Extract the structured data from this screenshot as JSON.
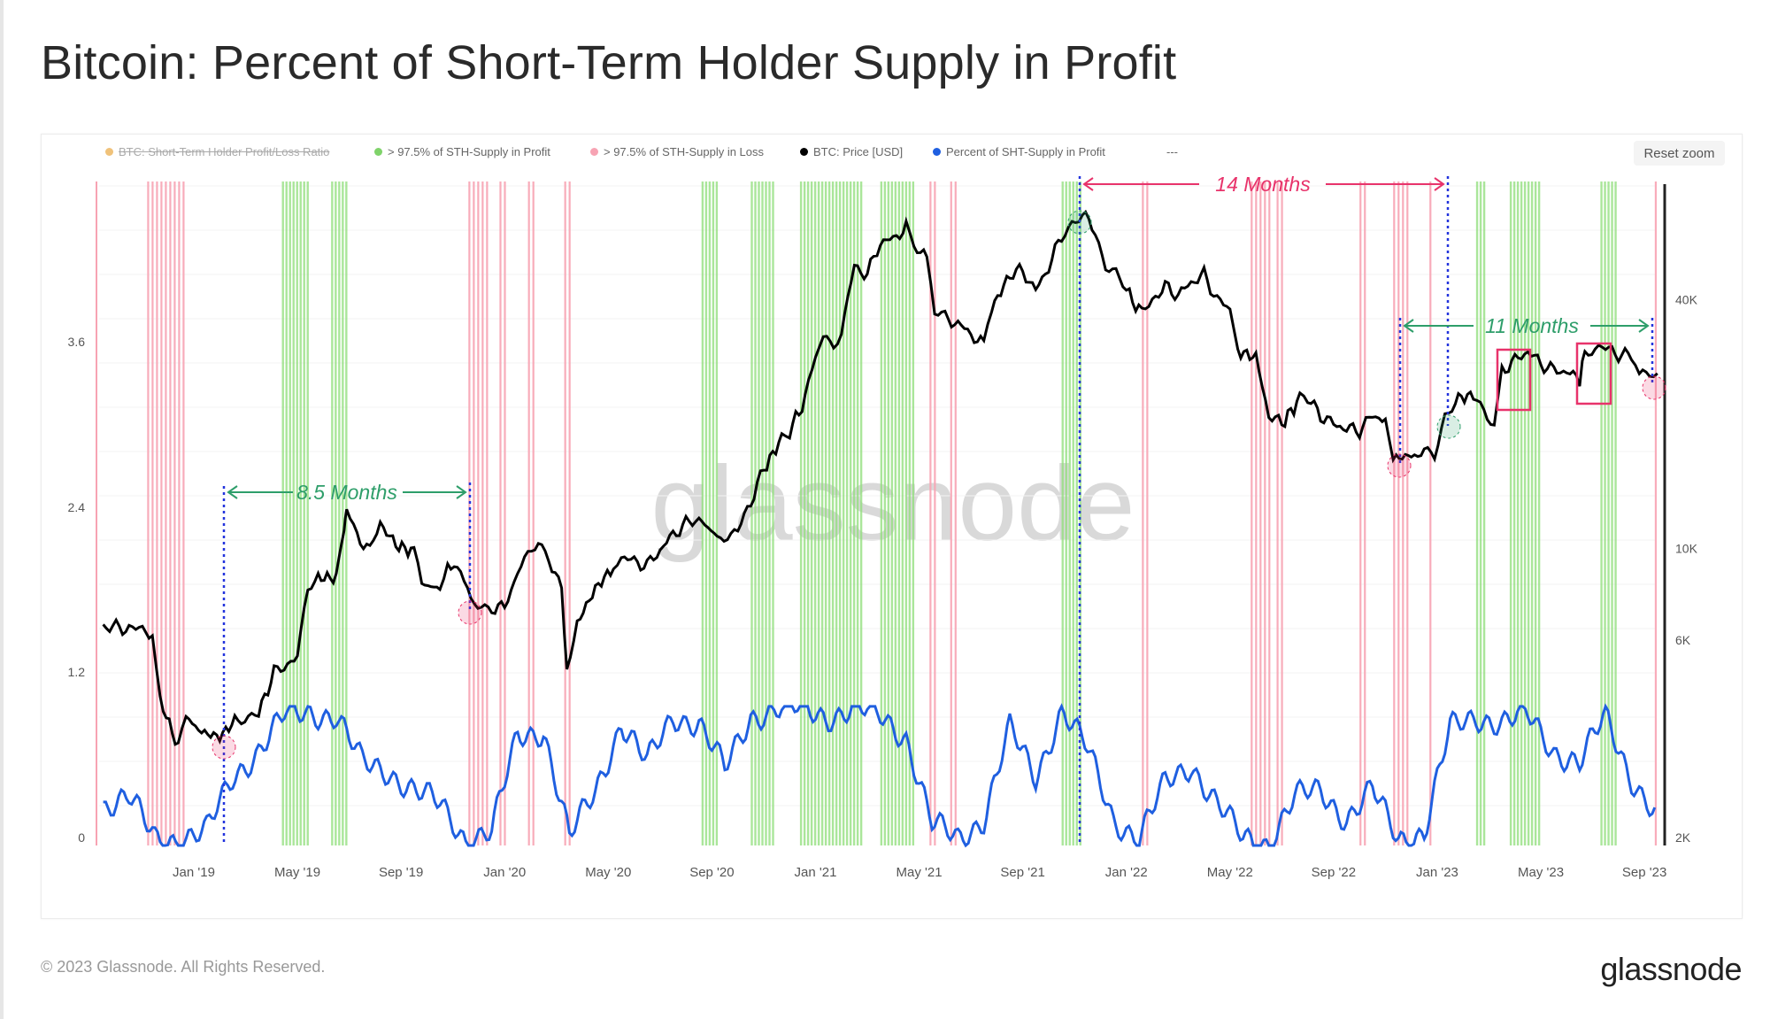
{
  "title": "Bitcoin: Percent of Short-Term Holder Supply in Profit",
  "reset_zoom": "Reset zoom",
  "footer": {
    "copyright": "© 2023 Glassnode. All Rights Reserved.",
    "logo": "glassnode"
  },
  "watermark": "glassnode",
  "legend": [
    {
      "label": "BTC: Short-Term Holder Profit/Loss Ratio",
      "color": "#f0c27a",
      "disabled": true
    },
    {
      "label": "> 97.5% of STH-Supply in Profit",
      "color": "#7fd36a"
    },
    {
      "label": "> 97.5% of STH-Supply in Loss",
      "color": "#f7a3b3"
    },
    {
      "label": "BTC: Price [USD]",
      "color": "#000000"
    },
    {
      "label": "Percent of SHT-Supply in Profit",
      "color": "#1f5fe0"
    },
    {
      "label": "---",
      "color": "#999999"
    }
  ],
  "annotations": {
    "a1": "8.5 Months",
    "a2": "14 Months",
    "a3": "11 Months",
    "green": "#2e9e6a",
    "pink": "#e8336b",
    "blue": "#2233dd"
  },
  "chart_data": {
    "type": "line",
    "title": "Bitcoin: Percent of Short-Term Holder Supply in Profit",
    "x_unit": "months since Jan 2019",
    "xlim": [
      -3.8,
      56.8
    ],
    "x_ticks": [
      {
        "t": 0,
        "label": "Jan '19"
      },
      {
        "t": 4,
        "label": "May '19"
      },
      {
        "t": 8,
        "label": "Sep '19"
      },
      {
        "t": 12,
        "label": "Jan '20"
      },
      {
        "t": 16,
        "label": "May '20"
      },
      {
        "t": 20,
        "label": "Sep '20"
      },
      {
        "t": 24,
        "label": "Jan '21"
      },
      {
        "t": 28,
        "label": "May '21"
      },
      {
        "t": 32,
        "label": "Sep '21"
      },
      {
        "t": 36,
        "label": "Jan '22"
      },
      {
        "t": 40,
        "label": "May '22"
      },
      {
        "t": 44,
        "label": "Sep '22"
      },
      {
        "t": 48,
        "label": "Jan '23"
      },
      {
        "t": 52,
        "label": "May '23"
      },
      {
        "t": 56,
        "label": "Sep '23"
      }
    ],
    "y_left": {
      "ticks": [
        "0",
        "1.2",
        "2.4",
        "3.6"
      ],
      "values": [
        0,
        1.2,
        2.4,
        3.6
      ],
      "range": [
        0,
        4.8
      ]
    },
    "y_right": {
      "scale": "log",
      "ticks": [
        "2K",
        "6K",
        "10K",
        "40K"
      ],
      "values": [
        2000,
        6000,
        10000,
        40000
      ],
      "range": [
        2000,
        80000
      ]
    },
    "series": [
      {
        "name": "BTC: Price [USD]",
        "color": "#000000",
        "unit": "thousand USD",
        "points": [
          [
            -3.5,
            6.5
          ],
          [
            -2.5,
            6.4
          ],
          [
            -1.6,
            6.3
          ],
          [
            -1.3,
            4.3
          ],
          [
            -0.6,
            3.3
          ],
          [
            -0.3,
            3.9
          ],
          [
            0.3,
            3.6
          ],
          [
            1,
            3.5
          ],
          [
            1.7,
            3.9
          ],
          [
            2.5,
            4.0
          ],
          [
            3.1,
            5.0
          ],
          [
            4,
            5.5
          ],
          [
            4.4,
            7.8
          ],
          [
            4.8,
            8.5
          ],
          [
            5.5,
            8.5
          ],
          [
            5.8,
            11
          ],
          [
            5.9,
            12.5
          ],
          [
            6.3,
            10.8
          ],
          [
            6.8,
            9.8
          ],
          [
            7.2,
            11.5
          ],
          [
            7.8,
            10.2
          ],
          [
            8.5,
            9.8
          ],
          [
            8.8,
            8.2
          ],
          [
            9.5,
            8.0
          ],
          [
            9.8,
            9.3
          ],
          [
            10.3,
            8.8
          ],
          [
            10.7,
            7.3
          ],
          [
            11.5,
            7.2
          ],
          [
            12,
            7.2
          ],
          [
            12.5,
            8.8
          ],
          [
            13.3,
            10.2
          ],
          [
            13.7,
            9.5
          ],
          [
            14.2,
            8.0
          ],
          [
            14.4,
            5.0
          ],
          [
            14.8,
            6.6
          ],
          [
            15.5,
            8.0
          ],
          [
            16.2,
            9.0
          ],
          [
            16.5,
            9.6
          ],
          [
            17,
            9.3
          ],
          [
            17.5,
            9.1
          ],
          [
            18.5,
            10.8
          ],
          [
            19,
            11.5
          ],
          [
            19.5,
            11.8
          ],
          [
            20.2,
            10.7
          ],
          [
            21,
            11.0
          ],
          [
            21.5,
            13.0
          ],
          [
            22,
            15.5
          ],
          [
            22.7,
            18.5
          ],
          [
            23,
            19.2
          ],
          [
            23.6,
            23
          ],
          [
            24,
            29
          ],
          [
            24.3,
            33
          ],
          [
            24.7,
            31
          ],
          [
            25,
            34
          ],
          [
            25.5,
            48
          ],
          [
            26,
            46
          ],
          [
            26.5,
            55
          ],
          [
            27,
            56
          ],
          [
            27.5,
            60
          ],
          [
            27.8,
            54
          ],
          [
            28.3,
            50
          ],
          [
            28.6,
            37
          ],
          [
            29,
            36
          ],
          [
            29.5,
            35
          ],
          [
            30,
            33
          ],
          [
            30.5,
            31
          ],
          [
            30.8,
            38
          ],
          [
            31.5,
            46
          ],
          [
            32,
            47
          ],
          [
            32.5,
            42
          ],
          [
            33,
            48
          ],
          [
            33.5,
            57
          ],
          [
            33.9,
            62
          ],
          [
            34.3,
            65
          ],
          [
            34.8,
            58
          ],
          [
            35.2,
            49
          ],
          [
            35.6,
            47
          ],
          [
            36,
            42
          ],
          [
            36.6,
            37
          ],
          [
            37,
            40
          ],
          [
            37.5,
            43
          ],
          [
            38,
            41
          ],
          [
            38.5,
            44
          ],
          [
            39,
            46
          ],
          [
            39.5,
            40
          ],
          [
            40,
            38
          ],
          [
            40.3,
            30
          ],
          [
            41,
            29
          ],
          [
            41.5,
            21
          ],
          [
            42,
            20
          ],
          [
            42.7,
            23
          ],
          [
            43,
            23
          ],
          [
            43.5,
            21
          ],
          [
            44,
            20
          ],
          [
            44.5,
            19.5
          ],
          [
            45,
            19.3
          ],
          [
            45.5,
            21
          ],
          [
            46,
            20.5
          ],
          [
            46.3,
            16.5
          ],
          [
            47,
            16.8
          ],
          [
            47.5,
            17
          ],
          [
            47.9,
            16.6
          ],
          [
            48.3,
            21
          ],
          [
            48.7,
            23
          ],
          [
            49.4,
            23.5
          ],
          [
            49.8,
            22
          ],
          [
            50.2,
            20
          ],
          [
            50.5,
            27
          ],
          [
            51,
            28.5
          ],
          [
            51.5,
            30
          ],
          [
            52,
            28
          ],
          [
            52.5,
            27
          ],
          [
            53,
            26.8
          ],
          [
            53.5,
            25.5
          ],
          [
            53.7,
            30.3
          ],
          [
            54.5,
            30.5
          ],
          [
            55,
            29.5
          ],
          [
            55.5,
            29.2
          ],
          [
            55.8,
            26
          ],
          [
            56.2,
            26
          ],
          [
            56.5,
            26.5
          ]
        ]
      },
      {
        "name": "Percent of SHT-Supply in Profit",
        "color": "#1f5fe0",
        "unit": "fraction",
        "start": -3.5,
        "step": 1,
        "values": [
          0.3,
          0.35,
          0.05,
          0.05,
          0.1,
          0.5,
          0.7,
          0.95,
          0.98,
          0.95,
          0.6,
          0.55,
          0.4,
          0.3,
          0.05,
          0.1,
          0.8,
          0.85,
          0.05,
          0.4,
          0.9,
          0.6,
          0.95,
          0.9,
          0.55,
          0.95,
          1,
          1,
          0.95,
          1,
          0.95,
          0.8,
          0.15,
          0.05,
          0.2,
          0.85,
          0.5,
          1,
          0.7,
          0.2,
          0.05,
          0.45,
          0.6,
          0.3,
          0.05,
          0.02,
          0.35,
          0.4,
          0.2,
          0.4,
          0.05,
          0.1,
          0.85,
          0.95,
          0.9,
          0.95,
          0.7,
          0.6,
          0.95,
          0.5,
          0.2
        ]
      }
    ],
    "profit_bands": [
      [
        3.4,
        4.4
      ],
      [
        5.3,
        5.9
      ],
      [
        19.6,
        20.2
      ],
      [
        21.5,
        22.4
      ],
      [
        23.4,
        25.8
      ],
      [
        26.5,
        27.8
      ],
      [
        33.5,
        34.3
      ],
      [
        49.5,
        49.8
      ],
      [
        50.8,
        52.0
      ],
      [
        54.3,
        54.9
      ]
    ],
    "loss_bands": [
      [
        -1.8,
        -0.3
      ],
      [
        10.6,
        11.3
      ],
      [
        11.8,
        12.1
      ],
      [
        12.9,
        13.1
      ],
      [
        14.3,
        14.6
      ],
      [
        28.4,
        28.6
      ],
      [
        29.2,
        29.4
      ],
      [
        36.6,
        36.8
      ],
      [
        40.8,
        41.6
      ],
      [
        41.8,
        42.1
      ],
      [
        45.0,
        45.2
      ],
      [
        46.3,
        46.9
      ],
      [
        47.7,
        47.8
      ],
      [
        56.4,
        56.5
      ]
    ]
  }
}
